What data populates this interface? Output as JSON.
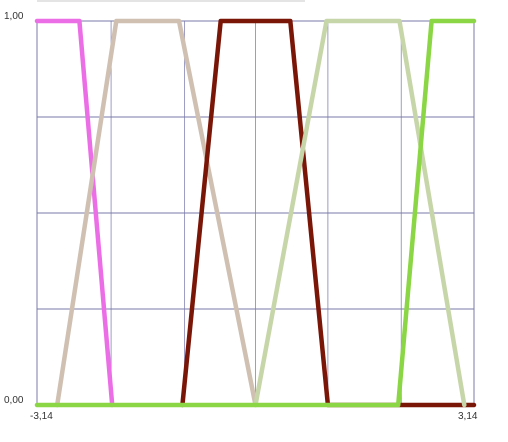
{
  "chart_data": {
    "type": "line",
    "title": "",
    "xlabel": "",
    "ylabel": "",
    "xlim": [
      -3.14,
      3.14
    ],
    "ylim": [
      0,
      1
    ],
    "grid": true,
    "vertical_gridlines": [
      -2.075,
      -1.02,
      0,
      1.04,
      2.095
    ],
    "horizontal_gridlines": [
      0.25,
      0.5,
      0.75
    ],
    "x_tick_labels": [
      {
        "value": -3.14,
        "label": "-3,14"
      },
      {
        "value": 3.14,
        "label": "3,14"
      }
    ],
    "y_tick_labels": [
      {
        "value": 0,
        "label": "0,00"
      },
      {
        "value": 1,
        "label": "1,00"
      }
    ],
    "legend": "none",
    "series": [
      {
        "color": "#ec6ee6",
        "points": [
          [
            -3.14,
            1
          ],
          [
            -2.53,
            1
          ],
          [
            -2.06,
            0
          ]
        ]
      },
      {
        "color": "#cfc0b2",
        "points": [
          [
            -2.85,
            0
          ],
          [
            -2.0,
            1
          ],
          [
            -1.1,
            1
          ],
          [
            0.0,
            0
          ]
        ]
      },
      {
        "color": "#7a1608",
        "points": [
          [
            -1.05,
            0
          ],
          [
            -0.5,
            1
          ],
          [
            0.5,
            1
          ],
          [
            1.04,
            0
          ],
          [
            2.11,
            0
          ],
          [
            3.14,
            0
          ]
        ]
      },
      {
        "color": "#c7d6a9",
        "points": [
          [
            0.0,
            0
          ],
          [
            1.02,
            1
          ],
          [
            2.07,
            1
          ],
          [
            3.0,
            0
          ]
        ]
      },
      {
        "color": "#8ad645",
        "points": [
          [
            -3.14,
            0
          ],
          [
            2.05,
            0
          ],
          [
            2.53,
            1
          ],
          [
            3.14,
            1
          ]
        ]
      }
    ]
  }
}
